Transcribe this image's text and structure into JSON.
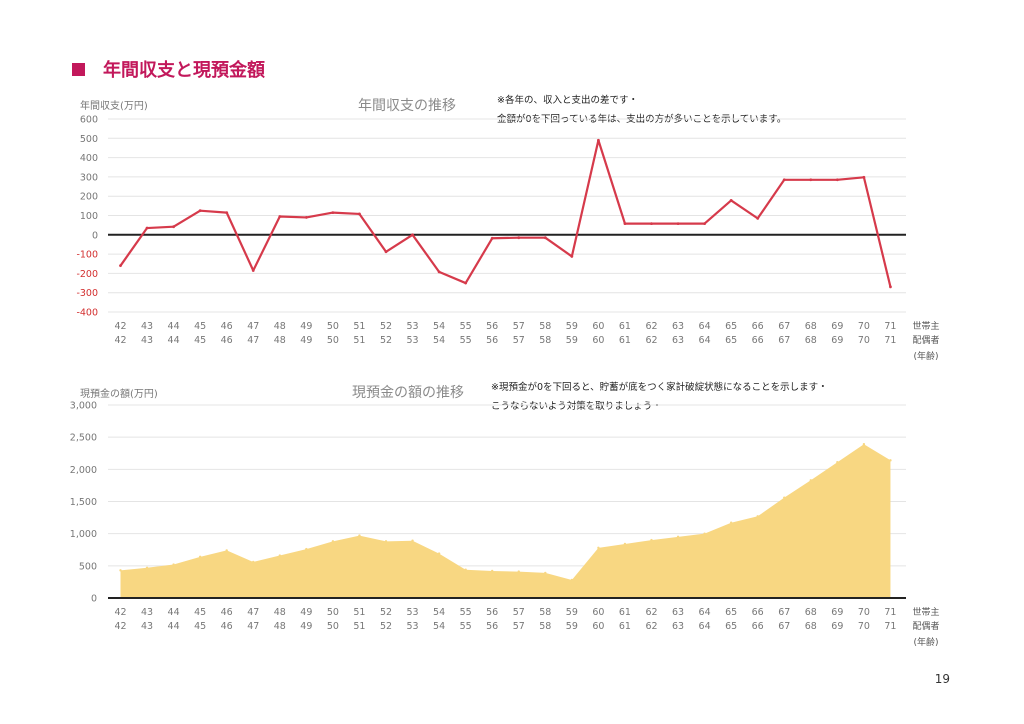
{
  "section_title": "年間収支と現預金額",
  "page_number": "19",
  "colors": {
    "accent": "#c2185b",
    "line": "#d63a4b",
    "area": "#f8d782",
    "negative_tick": "#d32f2f",
    "axis": "#222222"
  },
  "x_axis_labels": {
    "row_label_1": "世帯主",
    "row_label_2": "配偶者",
    "row_label_3": "(年齢)"
  },
  "chart_data": [
    {
      "type": "line",
      "title": "年間収支の推移",
      "ylabel": "年間収支(万円)",
      "ylim": [
        -400,
        600
      ],
      "yticks": [
        "600",
        "500",
        "400",
        "300",
        "200",
        "100",
        "0",
        "-100",
        "-200",
        "-300",
        "-400"
      ],
      "x_primary": [
        "42",
        "43",
        "44",
        "45",
        "46",
        "47",
        "48",
        "49",
        "50",
        "51",
        "52",
        "53",
        "54",
        "55",
        "56",
        "57",
        "58",
        "59",
        "60",
        "61",
        "62",
        "63",
        "64",
        "65",
        "66",
        "67",
        "68",
        "69",
        "70",
        "71"
      ],
      "x_secondary": [
        "42",
        "43",
        "44",
        "45",
        "46",
        "47",
        "48",
        "49",
        "50",
        "51",
        "52",
        "53",
        "54",
        "55",
        "56",
        "57",
        "58",
        "59",
        "60",
        "61",
        "62",
        "63",
        "64",
        "65",
        "66",
        "67",
        "68",
        "69",
        "70",
        "71"
      ],
      "values": [
        -160,
        35,
        42,
        125,
        115,
        -185,
        95,
        90,
        115,
        108,
        -88,
        0,
        -192,
        -250,
        -18,
        -15,
        -15,
        -112,
        490,
        58,
        58,
        58,
        58,
        178,
        85,
        285,
        285,
        285,
        298,
        -270
      ],
      "grid": true,
      "notes": [
        "※各年の、収入と支出の差です・",
        "金額が0を下回っている年は、支出の方が多いことを示しています。"
      ]
    },
    {
      "type": "area",
      "title": "現預金の額の推移",
      "ylabel": "現預金の額(万円)",
      "ylim": [
        0,
        3000
      ],
      "yticks": [
        "3,000",
        "2,500",
        "2,000",
        "1,500",
        "1,000",
        "500",
        "0"
      ],
      "x_primary": [
        "42",
        "43",
        "44",
        "45",
        "46",
        "47",
        "48",
        "49",
        "50",
        "51",
        "52",
        "53",
        "54",
        "55",
        "56",
        "57",
        "58",
        "59",
        "60",
        "61",
        "62",
        "63",
        "64",
        "65",
        "66",
        "67",
        "68",
        "69",
        "70",
        "71"
      ],
      "x_secondary": [
        "42",
        "43",
        "44",
        "45",
        "46",
        "47",
        "48",
        "49",
        "50",
        "51",
        "52",
        "53",
        "54",
        "55",
        "56",
        "57",
        "58",
        "59",
        "60",
        "61",
        "62",
        "63",
        "64",
        "65",
        "66",
        "67",
        "68",
        "69",
        "70",
        "71"
      ],
      "values": [
        430,
        470,
        520,
        640,
        740,
        560,
        660,
        760,
        880,
        970,
        880,
        890,
        690,
        440,
        420,
        410,
        390,
        280,
        780,
        840,
        900,
        950,
        1000,
        1170,
        1270,
        1560,
        1830,
        2110,
        2390,
        2140
      ],
      "grid": true,
      "notes": [
        "※現預金が0を下回ると、貯蓄が底をつく家計破綻状態になることを示します・",
        "こうならないよう対策を取りましょう・"
      ]
    }
  ]
}
